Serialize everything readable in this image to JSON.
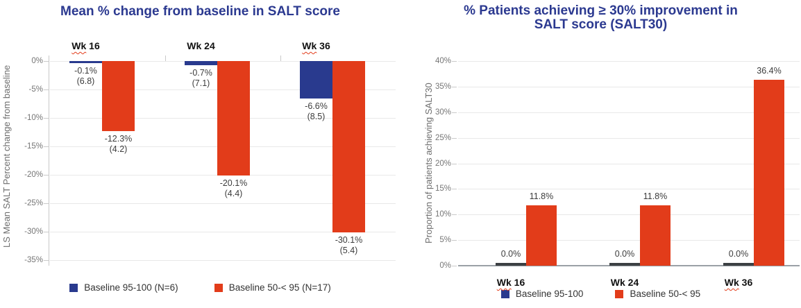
{
  "colors": {
    "series_blue": "#293A8E",
    "series_red": "#E23C1A",
    "sliver_dark": "#3C4043",
    "title_blue": "#2B3990",
    "grid": "#E8E8E8",
    "axis_line": "#C9C9C9",
    "baseline_dark": "#9AA0A6",
    "tick_text": "#757575",
    "bar_label_text": "#3C3C3C",
    "squiggle_red": "#E23C1A"
  },
  "chart_data": [
    {
      "type": "bar",
      "title": "Mean % change from baseline in SALT score",
      "ylabel": "LS Mean SALT Percent change from baseline",
      "xlabel": "",
      "ylim": [
        -35,
        0
      ],
      "grid": true,
      "legend_position": "bottom",
      "yticks": [
        "0%",
        "-5%",
        "-10%",
        "-15%",
        "-20%",
        "-25%",
        "-30%",
        "-35%"
      ],
      "ytick_values": [
        0,
        -5,
        -10,
        -15,
        -20,
        -25,
        -30,
        -35
      ],
      "categories": [
        "Wk 16",
        "Wk 24",
        "Wk 36"
      ],
      "cat_labels": [
        {
          "w": "Wk",
          "n": "16"
        },
        {
          "w": "Wk",
          "n": "24"
        },
        {
          "w": "Wk",
          "n": "36"
        }
      ],
      "series": [
        {
          "name": "Baseline 95-100 (N=6)",
          "color_key": "series_blue",
          "values": [
            -0.1,
            -0.7,
            -6.6
          ],
          "value_labels": [
            "-0.1%",
            "-0.7%",
            "-6.6%"
          ],
          "sub_labels": [
            "(6.8)",
            "(7.1)",
            "(8.5)"
          ]
        },
        {
          "name": "Baseline 50-< 95 (N=17)",
          "color_key": "series_red",
          "values": [
            -12.3,
            -20.1,
            -30.1
          ],
          "value_labels": [
            "-12.3%",
            "-20.1%",
            "-30.1%"
          ],
          "sub_labels": [
            "(4.2)",
            "(4.4)",
            "(5.4)"
          ]
        }
      ]
    },
    {
      "type": "bar",
      "title": "% Patients achieving ≥ 30% improvement in SALT score (SALT30)",
      "ylabel": "Proportion of patients achieving SALT30",
      "xlabel": "",
      "ylim": [
        0,
        40
      ],
      "grid": true,
      "legend_position": "bottom",
      "yticks": [
        "0%",
        "5%",
        "10%",
        "15%",
        "20%",
        "25%",
        "30%",
        "35%",
        "40%"
      ],
      "ytick_values": [
        0,
        5,
        10,
        15,
        20,
        25,
        30,
        35,
        40
      ],
      "categories": [
        "Wk 16",
        "Wk 24",
        "Wk 36"
      ],
      "cat_labels": [
        {
          "w": "Wk",
          "n": "16"
        },
        {
          "w": "Wk",
          "n": "24"
        },
        {
          "w": "Wk",
          "n": "36"
        }
      ],
      "series": [
        {
          "name": "Baseline 95-100",
          "color_key": "series_blue",
          "values": [
            0.0,
            0.0,
            0.0
          ],
          "value_labels": [
            "0.0%",
            "0.0%",
            "0.0%"
          ]
        },
        {
          "name": "Baseline 50-< 95",
          "color_key": "series_red",
          "values": [
            11.8,
            11.8,
            36.4
          ],
          "value_labels": [
            "11.8%",
            "11.8%",
            "36.4%"
          ]
        }
      ]
    }
  ]
}
